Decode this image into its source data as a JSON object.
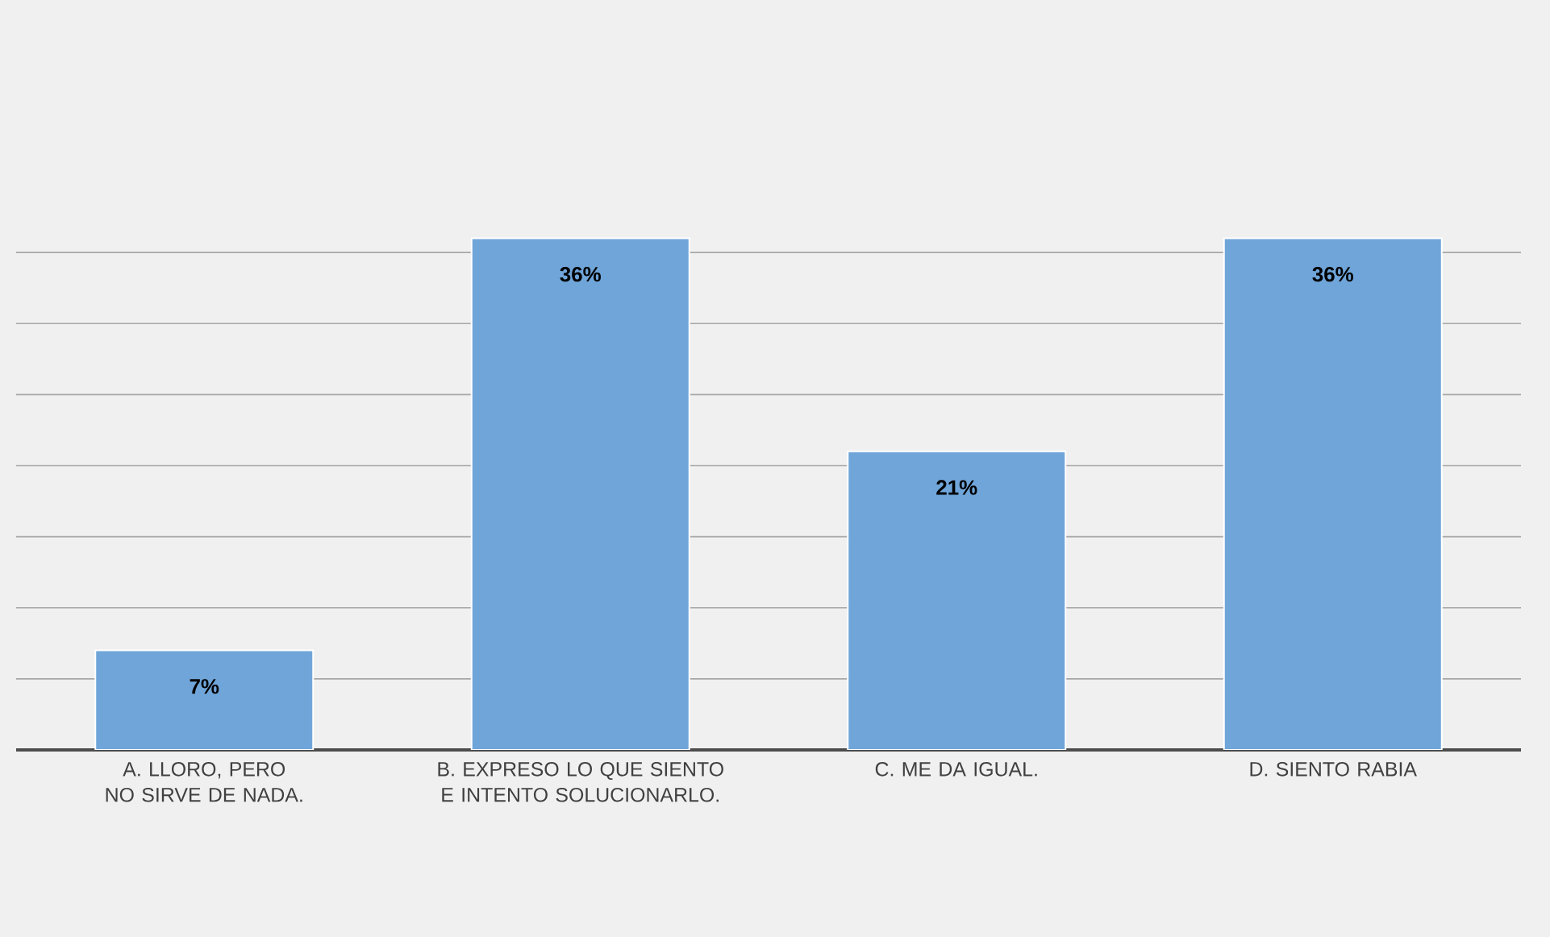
{
  "chart_data": {
    "type": "bar",
    "categories": [
      "A. LLORO, PERO NO SIRVE DE NADA.",
      "B.  EXPRESO LO QUE SIENTO E INTENTO SOLUCIONARLO.",
      "C. ME DA IGUAL.",
      "D. SIENTO RABIA"
    ],
    "values": [
      7,
      36,
      21,
      36
    ],
    "value_labels": [
      "7%",
      "36%",
      "21%",
      "36%"
    ],
    "color": "#6fa5d9",
    "grid": "y",
    "tick_labels": "x"
  }
}
